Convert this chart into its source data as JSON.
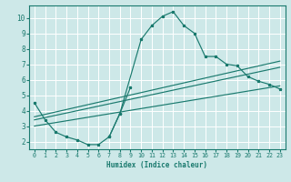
{
  "xlabel": "Humidex (Indice chaleur)",
  "bg_color": "#cde8e8",
  "grid_color": "#ffffff",
  "line_color": "#1a7a6e",
  "xlim": [
    -0.5,
    23.5
  ],
  "ylim": [
    1.5,
    10.8
  ],
  "xticks": [
    0,
    1,
    2,
    3,
    4,
    5,
    6,
    7,
    8,
    9,
    10,
    11,
    12,
    13,
    14,
    15,
    16,
    17,
    18,
    19,
    20,
    21,
    22,
    23
  ],
  "yticks": [
    2,
    3,
    4,
    5,
    6,
    7,
    8,
    9,
    10
  ],
  "curve1_x": [
    0,
    1,
    2,
    3,
    4,
    5,
    6,
    7,
    8,
    10,
    11,
    12,
    13,
    14,
    15,
    16,
    17,
    18,
    19,
    20,
    21,
    22,
    23
  ],
  "curve1_y": [
    4.5,
    3.4,
    2.6,
    2.3,
    2.1,
    1.8,
    1.8,
    2.3,
    3.8,
    8.6,
    9.5,
    10.1,
    10.4,
    9.5,
    9.0,
    7.5,
    7.5,
    7.0,
    6.9,
    6.2,
    5.9,
    5.7,
    5.4
  ],
  "line1_x": [
    0,
    23
  ],
  "line1_y": [
    3.4,
    6.8
  ],
  "line2_x": [
    0,
    23
  ],
  "line2_y": [
    3.6,
    7.2
  ],
  "line3_x": [
    0,
    23
  ],
  "line3_y": [
    3.0,
    5.6
  ],
  "curve2_x": [
    7,
    8,
    9
  ],
  "curve2_y": [
    2.3,
    3.8,
    5.5
  ]
}
